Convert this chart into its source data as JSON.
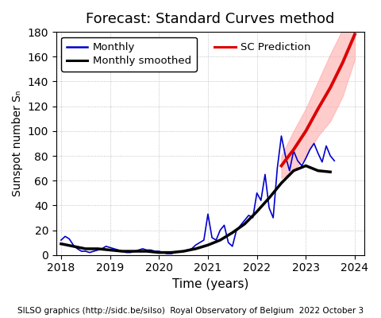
{
  "title": "Forecast: Standard Curves method",
  "xlabel": "Time (years)",
  "ylabel": "Sunspot number Sₙ",
  "footnote": "SILSO graphics (http://sidc.be/silso)  Royal Observatory of Belgium  2022 October 3",
  "ylim": [
    0,
    180
  ],
  "xlim_start": 2017.9,
  "xlim_end": 2024.2,
  "xticks": [
    2018,
    2019,
    2020,
    2021,
    2022,
    2023,
    2024
  ],
  "yticks": [
    0,
    20,
    40,
    60,
    80,
    100,
    120,
    140,
    160,
    180
  ],
  "background_color": "#ffffff",
  "grid_color": "#aaaaaa",
  "monthly_color": "#0000cc",
  "smoothed_color": "#000000",
  "prediction_color": "#dd0000",
  "prediction_fill_color": "#ffaaaa",
  "monthly_x": [
    2018.0,
    2018.083,
    2018.167,
    2018.25,
    2018.333,
    2018.417,
    2018.5,
    2018.583,
    2018.667,
    2018.75,
    2018.833,
    2018.917,
    2019.0,
    2019.083,
    2019.167,
    2019.25,
    2019.333,
    2019.417,
    2019.5,
    2019.583,
    2019.667,
    2019.75,
    2019.833,
    2019.917,
    2020.0,
    2020.083,
    2020.167,
    2020.25,
    2020.333,
    2020.417,
    2020.5,
    2020.583,
    2020.667,
    2020.75,
    2020.833,
    2020.917,
    2021.0,
    2021.083,
    2021.167,
    2021.25,
    2021.333,
    2021.417,
    2021.5,
    2021.583,
    2021.667,
    2021.75,
    2021.833,
    2021.917,
    2022.0,
    2022.083,
    2022.167,
    2022.25,
    2022.333,
    2022.417,
    2022.5,
    2022.583,
    2022.667,
    2022.75,
    2022.833,
    2022.917,
    2023.0,
    2023.083,
    2023.167,
    2023.25,
    2023.333,
    2023.417,
    2023.5,
    2023.583
  ],
  "monthly_y": [
    12,
    15,
    13,
    8,
    5,
    3,
    3,
    2,
    3,
    4,
    5,
    7,
    6,
    5,
    4,
    3,
    2,
    2,
    3,
    4,
    5,
    4,
    4,
    3,
    3,
    2,
    1,
    1,
    2,
    3,
    3,
    4,
    5,
    8,
    10,
    12,
    33,
    14,
    12,
    20,
    24,
    10,
    7,
    20,
    24,
    28,
    32,
    30,
    50,
    44,
    65,
    38,
    30,
    70,
    96,
    80,
    68,
    84,
    76,
    72,
    78,
    85,
    90,
    82,
    75,
    88,
    80,
    76
  ],
  "smoothed_x": [
    2018.0,
    2018.25,
    2018.5,
    2018.75,
    2019.0,
    2019.25,
    2019.5,
    2019.75,
    2020.0,
    2020.25,
    2020.5,
    2020.75,
    2021.0,
    2021.25,
    2021.5,
    2021.75,
    2022.0,
    2022.25,
    2022.5,
    2022.75,
    2023.0,
    2023.25,
    2023.5
  ],
  "smoothed_y": [
    9,
    7,
    5,
    5,
    4,
    3,
    3,
    3,
    2,
    2,
    3,
    5,
    8,
    12,
    18,
    25,
    35,
    46,
    58,
    68,
    72,
    68,
    67
  ],
  "prediction_x": [
    2022.5,
    2022.75,
    2023.0,
    2023.25,
    2023.5,
    2023.75,
    2024.0
  ],
  "prediction_y": [
    72,
    85,
    100,
    118,
    135,
    155,
    178
  ],
  "pred_upper": [
    80,
    100,
    118,
    140,
    162,
    182,
    200
  ],
  "pred_lower": [
    62,
    68,
    80,
    96,
    108,
    128,
    158
  ],
  "legend_left": [
    "Monthly",
    "Monthly smoothed"
  ],
  "legend_right": [
    "SC Prediction"
  ]
}
